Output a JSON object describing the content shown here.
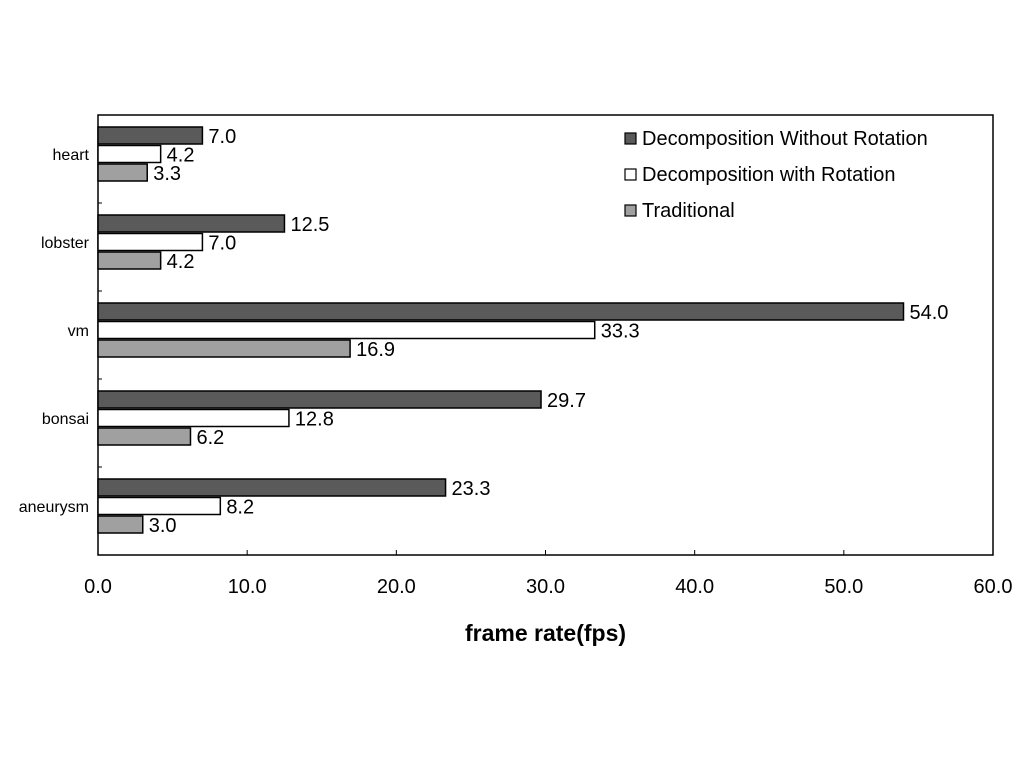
{
  "chart_data": {
    "type": "bar",
    "orientation": "horizontal",
    "categories": [
      "heart",
      "lobster",
      "vm",
      "bonsai",
      "aneurysm"
    ],
    "series": [
      {
        "name": "Decomposition Without Rotation",
        "color": "#5a5a5a",
        "values": [
          7.0,
          12.5,
          54.0,
          29.7,
          23.3
        ]
      },
      {
        "name": "Decomposition with Rotation",
        "color": "#ffffff",
        "values": [
          4.2,
          7.0,
          33.3,
          12.8,
          8.2
        ]
      },
      {
        "name": "Traditional",
        "color": "#a0a0a0",
        "values": [
          3.3,
          4.2,
          16.9,
          6.2,
          3.0
        ]
      }
    ],
    "xlabel": "frame rate(fps)",
    "ylabel": "",
    "xlim": [
      0,
      60
    ],
    "xticks": [
      "0.0",
      "10.0",
      "20.0",
      "30.0",
      "40.0",
      "50.0",
      "60.0"
    ],
    "value_labels": true,
    "grid": false,
    "legend_position": "top-right"
  }
}
